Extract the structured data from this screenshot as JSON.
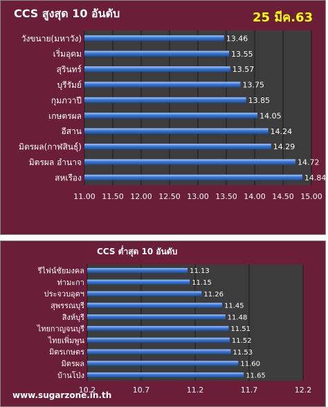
{
  "header": {
    "date": "25 มีค.63"
  },
  "footer": {
    "website": "www.sugarzone.in.th"
  },
  "colors": {
    "panel": "#6a1e37",
    "plot": "#3c3c3c",
    "bar": "#3a78d6",
    "bar_highlight": "#a8c8ff",
    "text": "#ffffff"
  },
  "chart_data": [
    {
      "type": "bar",
      "orientation": "horizontal",
      "title": "CCS สูงสุด 10 อันดับ",
      "categories": [
        "วังขนาย(มหาวัง)",
        "เริ่มอุดม",
        "สุรินทร์",
        "บุรีรัมย์",
        "กุมภวาปี",
        "เกษตรผล",
        "อีสาน",
        "มิตรผล(กาฬสินธุ์)",
        "มิตรผล   อำนาจ",
        "สหเรือง"
      ],
      "values": [
        13.46,
        13.55,
        13.57,
        13.75,
        13.85,
        14.05,
        14.24,
        14.29,
        14.72,
        14.84
      ],
      "value_labels": [
        "13.46",
        "13.55",
        "13.57",
        "13.75",
        "13.85",
        "14.05",
        "14.24",
        "14.29",
        "14.72",
        "14.84"
      ],
      "xlim": [
        11.0,
        15.0
      ],
      "xticks": [
        "11.00",
        "11.50",
        "12.00",
        "12.50",
        "13.00",
        "13.50",
        "14.00",
        "14.50",
        "15.00"
      ],
      "grid": true
    },
    {
      "type": "bar",
      "orientation": "horizontal",
      "title": "CCS ต่ำสุด  10 อันดับ",
      "categories": [
        "รีไฟน์ชัยมงคล",
        "ท่ามะกา",
        "ประจวบอุตฯ",
        "สุพรรณบุรี",
        "สิงห์บุรี",
        "ไทยกาญจนบุรี",
        "ไทยเพิ่มพูน",
        "มิตรเกษตร",
        "มิตรผล",
        "บ้านโป่ง"
      ],
      "values": [
        11.13,
        11.15,
        11.26,
        11.45,
        11.48,
        11.51,
        11.52,
        11.53,
        11.6,
        11.65
      ],
      "value_labels": [
        "11.13",
        "11.15",
        "11.26",
        "11.45",
        "11.48",
        "11.51",
        "11.52",
        "11.53",
        "11.60",
        "11.65"
      ],
      "xlim": [
        10.2,
        12.2
      ],
      "xticks": [
        "10.2",
        "10.7",
        "11.2",
        "11.7",
        "12.2"
      ],
      "grid": true
    }
  ]
}
